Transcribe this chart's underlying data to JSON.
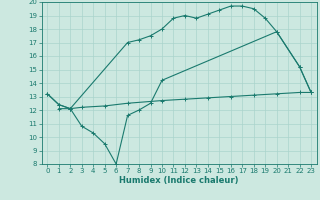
{
  "title": "",
  "xlabel": "Humidex (Indice chaleur)",
  "ylabel": "",
  "bg_color": "#cce8e0",
  "line_color": "#1a7a6e",
  "grid_color": "#aad4cc",
  "xlim": [
    -0.5,
    23.5
  ],
  "ylim": [
    8,
    20
  ],
  "xticks": [
    0,
    1,
    2,
    3,
    4,
    5,
    6,
    7,
    8,
    9,
    10,
    11,
    12,
    13,
    14,
    15,
    16,
    17,
    18,
    19,
    20,
    21,
    22,
    23
  ],
  "yticks": [
    8,
    9,
    10,
    11,
    12,
    13,
    14,
    15,
    16,
    17,
    18,
    19,
    20
  ],
  "line1_x": [
    0,
    1,
    2,
    7,
    8,
    9,
    10,
    11,
    12,
    13,
    14,
    15,
    16,
    17,
    18,
    19,
    20,
    22,
    23
  ],
  "line1_y": [
    13.2,
    12.4,
    12.1,
    17.0,
    17.2,
    17.5,
    18.0,
    18.8,
    19.0,
    18.8,
    19.1,
    19.4,
    19.7,
    19.7,
    19.5,
    18.8,
    17.8,
    15.2,
    13.3
  ],
  "line2_x": [
    0,
    1,
    2,
    3,
    4,
    5,
    6,
    7,
    8,
    9,
    10,
    20,
    22,
    23
  ],
  "line2_y": [
    13.2,
    12.4,
    12.1,
    10.8,
    10.3,
    9.5,
    8.0,
    11.6,
    12.0,
    12.5,
    14.2,
    17.8,
    15.2,
    13.3
  ],
  "line3_x": [
    1,
    2,
    3,
    5,
    7,
    10,
    12,
    14,
    16,
    18,
    20,
    22,
    23
  ],
  "line3_y": [
    12.1,
    12.1,
    12.2,
    12.3,
    12.5,
    12.7,
    12.8,
    12.9,
    13.0,
    13.1,
    13.2,
    13.3,
    13.3
  ],
  "tick_fontsize": 5.0,
  "xlabel_fontsize": 6.0,
  "lw": 0.8,
  "ms": 2.5
}
